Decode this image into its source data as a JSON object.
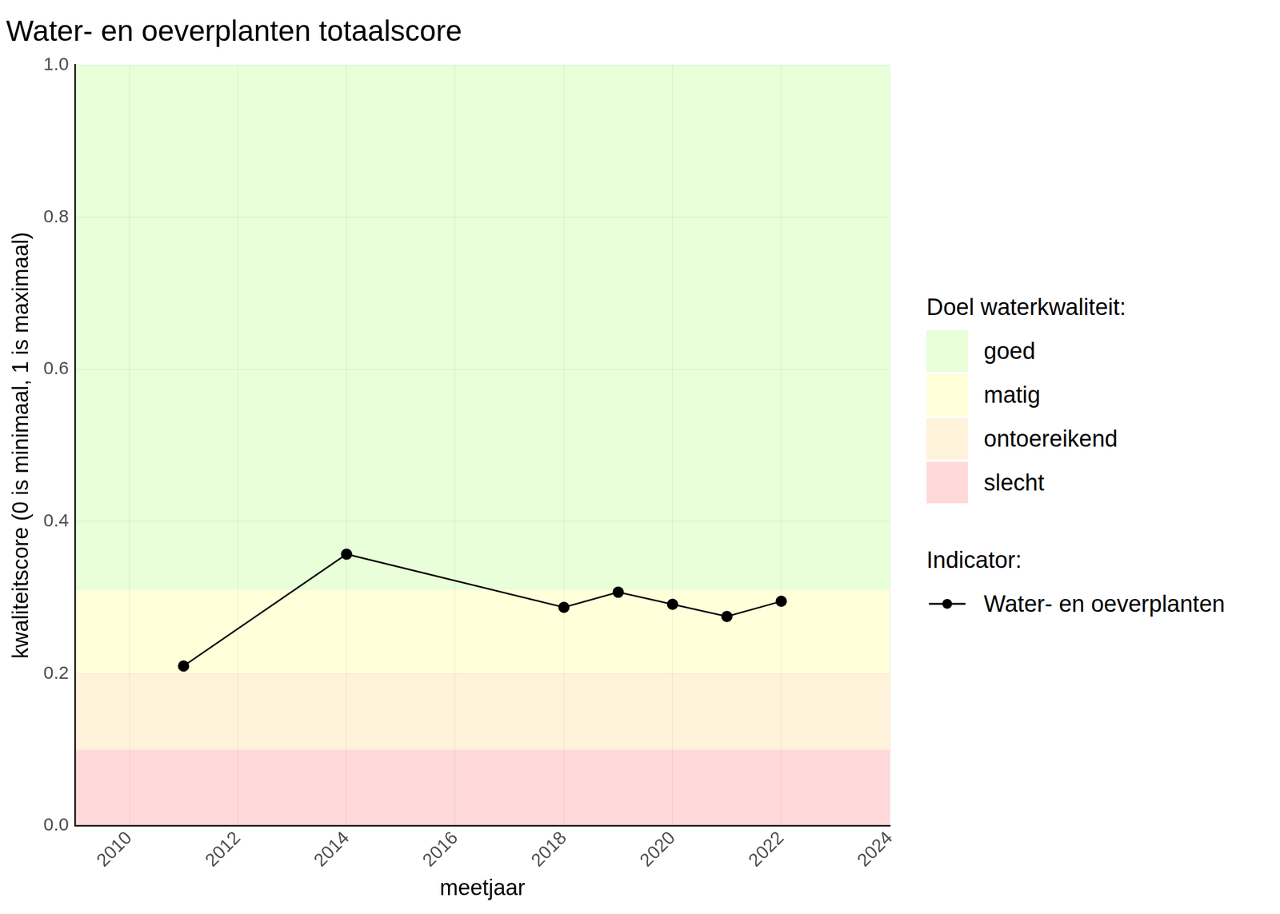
{
  "chart_data": {
    "type": "line",
    "title": "Water- en oeverplanten totaalscore",
    "x_label": "meetjaar",
    "y_label": "kwaliteitscore (0 is minimaal, 1 is maximaal)",
    "x": [
      2011,
      2014,
      2018,
      2019,
      2020,
      2021,
      2022
    ],
    "series": [
      {
        "name": "Water- en oeverplanten",
        "color": "#000000",
        "values": [
          0.21,
          0.357,
          0.287,
          0.307,
          0.291,
          0.275,
          0.295
        ],
        "marker": "circle",
        "line_style": "solid"
      }
    ],
    "xlim": [
      2009,
      2024
    ],
    "xticks": [
      2010,
      2012,
      2014,
      2016,
      2018,
      2020,
      2022,
      2024
    ],
    "ylim": [
      0,
      1
    ],
    "yticks": [
      {
        "value": 0,
        "label": "0.0"
      },
      0.2,
      0.4,
      0.6,
      0.8,
      {
        "value": 1,
        "label": "1.0"
      }
    ],
    "grid": true,
    "legend": "right",
    "band_legend_title": "Doel waterkwaliteit:",
    "series_legend_title": "Indicator:",
    "bands": [
      {
        "name": "goed",
        "from": 0.31,
        "to": 1.0,
        "color": "#e8ffd9"
      },
      {
        "name": "matig",
        "from": 0.2,
        "to": 0.31,
        "color": "#ffffda"
      },
      {
        "name": "ontoereikend",
        "from": 0.1,
        "to": 0.2,
        "color": "#fff2da"
      },
      {
        "name": "slecht",
        "from": 0.0,
        "to": 0.1,
        "color": "#ffd9d9"
      }
    ]
  }
}
